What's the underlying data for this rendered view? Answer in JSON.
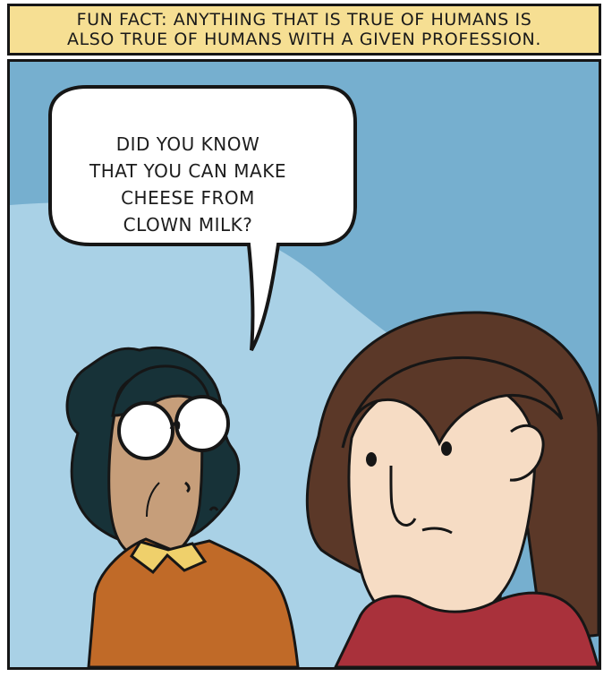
{
  "caption": {
    "text": "FUN FACT: ANYTHING THAT IS TRUE OF HUMANS IS\nALSO TRUE OF HUMANS WITH A GIVEN PROFESSION."
  },
  "speech_bubble": {
    "text": "DID YOU KNOW\nTHAT YOU CAN MAKE\nCHEESE FROM\nCLOWN MILK?"
  },
  "colors": {
    "caption_bg": "#f6df93",
    "sky": "#76afcf",
    "sky_light": "#a9d1e6",
    "outline": "#161616",
    "dark_hair": "#173238",
    "brown_hair": "#5b3828",
    "skin_tan": "#c69e7a",
    "skin_light": "#f6dcc4",
    "orange_sweater": "#c06a28",
    "yellow_collar": "#efd06b",
    "red_shirt": "#a9313b"
  }
}
